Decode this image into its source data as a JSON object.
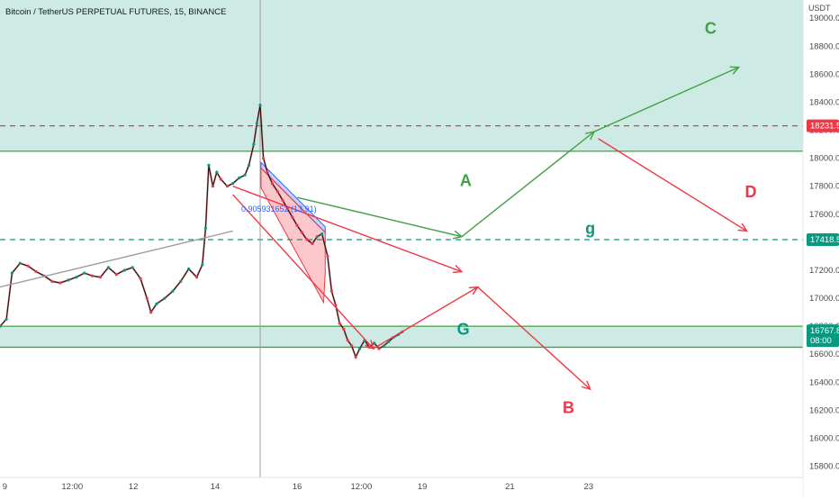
{
  "header": {
    "title": "Bitcoin / TetherUS PERPETUAL FUTURES, 15, BINANCE"
  },
  "axis": {
    "currency": "USDT",
    "ylim": [
      15720,
      19130
    ],
    "xlim": [
      0,
      100
    ],
    "yticks": [
      15800,
      16000,
      16200,
      16400,
      16600,
      16800,
      17000,
      17200,
      17400,
      17600,
      17800,
      18000,
      18200,
      18400,
      18600,
      18800,
      19000
    ],
    "xticks": [
      {
        "label": "9",
        "x": 0.6
      },
      {
        "label": "12:00",
        "x": 9.0
      },
      {
        "label": "12",
        "x": 16.6
      },
      {
        "label": "14",
        "x": 26.8
      },
      {
        "label": "16",
        "x": 37.0
      },
      {
        "label": "12:00",
        "x": 45.0
      },
      {
        "label": "19",
        "x": 52.6
      },
      {
        "label": "21",
        "x": 63.5
      },
      {
        "label": "23",
        "x": 73.3
      }
    ]
  },
  "price_labels": {
    "resistance": {
      "text": "18231.5",
      "value": 18231.5,
      "color": "#f23645"
    },
    "pivot": {
      "text": "17418.5",
      "value": 17418.5,
      "color": "#089981"
    },
    "current": {
      "price": "16767.8",
      "countdown": "08:00",
      "value": 16767.8,
      "color": "#089981"
    }
  },
  "annotations": {
    "fib_text": "0.905931652 (13.91)",
    "waves": [
      {
        "label": "C",
        "x": 88.5,
        "y": 18890,
        "color": "#43a047"
      },
      {
        "label": "A",
        "x": 58.0,
        "y": 17800,
        "color": "#43a047"
      },
      {
        "label": "D",
        "x": 93.5,
        "y": 17720,
        "color": "#f23645"
      },
      {
        "label": "g",
        "x": 73.5,
        "y": 17460,
        "color": "#089981"
      },
      {
        "label": "G",
        "x": 57.7,
        "y": 16740,
        "color": "#089981"
      },
      {
        "label": "B",
        "x": 70.8,
        "y": 16180,
        "color": "#f23645"
      }
    ]
  },
  "chart_data": {
    "type": "line",
    "title": "Bitcoin / TetherUS PERPETUAL FUTURES, 15, BINANCE",
    "xlabel": "",
    "ylabel": "USDT",
    "ylim": [
      15720,
      19130
    ],
    "grid": false,
    "price_series": [
      [
        0.0,
        16800
      ],
      [
        0.8,
        16850
      ],
      [
        1.5,
        17180
      ],
      [
        2.5,
        17250
      ],
      [
        3.5,
        17230
      ],
      [
        4.5,
        17190
      ],
      [
        5.5,
        17160
      ],
      [
        6.5,
        17120
      ],
      [
        7.5,
        17110
      ],
      [
        8.5,
        17130
      ],
      [
        9.5,
        17150
      ],
      [
        10.5,
        17180
      ],
      [
        11.5,
        17160
      ],
      [
        12.5,
        17150
      ],
      [
        13.5,
        17220
      ],
      [
        14.5,
        17170
      ],
      [
        15.5,
        17200
      ],
      [
        16.5,
        17220
      ],
      [
        17.5,
        17140
      ],
      [
        18.3,
        17000
      ],
      [
        18.8,
        16900
      ],
      [
        19.5,
        16960
      ],
      [
        20.5,
        17000
      ],
      [
        21.5,
        17050
      ],
      [
        22.5,
        17120
      ],
      [
        23.5,
        17210
      ],
      [
        24.5,
        17150
      ],
      [
        25.2,
        17240
      ],
      [
        25.6,
        17500
      ],
      [
        26.0,
        17950
      ],
      [
        26.5,
        17800
      ],
      [
        27.0,
        17900
      ],
      [
        27.5,
        17850
      ],
      [
        28.3,
        17800
      ],
      [
        29.0,
        17820
      ],
      [
        29.8,
        17860
      ],
      [
        30.5,
        17880
      ],
      [
        31.0,
        17950
      ],
      [
        31.6,
        18100
      ],
      [
        32.0,
        18250
      ],
      [
        32.4,
        18380
      ],
      [
        32.8,
        18000
      ],
      [
        33.3,
        17900
      ],
      [
        33.9,
        17820
      ],
      [
        34.6,
        17760
      ],
      [
        35.2,
        17700
      ],
      [
        35.8,
        17640
      ],
      [
        36.4,
        17580
      ],
      [
        37.0,
        17520
      ],
      [
        37.6,
        17470
      ],
      [
        38.2,
        17420
      ],
      [
        38.9,
        17390
      ],
      [
        39.5,
        17440
      ],
      [
        40.1,
        17460
      ],
      [
        40.8,
        17300
      ],
      [
        41.3,
        17050
      ],
      [
        41.8,
        16950
      ],
      [
        42.3,
        16820
      ],
      [
        42.8,
        16780
      ],
      [
        43.3,
        16700
      ],
      [
        43.8,
        16660
      ],
      [
        44.3,
        16580
      ],
      [
        44.8,
        16640
      ],
      [
        45.4,
        16700
      ],
      [
        46.0,
        16650
      ],
      [
        46.6,
        16680
      ],
      [
        47.2,
        16640
      ],
      [
        47.8,
        16660
      ],
      [
        48.4,
        16690
      ],
      [
        49.0,
        16720
      ],
      [
        49.6,
        16740
      ],
      [
        50.1,
        16760
      ]
    ],
    "horizontal_levels": [
      {
        "value": 18231.5,
        "style": "dashed",
        "color": "#f23645"
      },
      {
        "value": 18050,
        "style": "solid",
        "color": "#43a047"
      },
      {
        "value": 17418.5,
        "style": "dashed",
        "color": "#089981"
      },
      {
        "value": 16800,
        "style": "solid",
        "color": "#43a047"
      },
      {
        "value": 16650,
        "style": "solid",
        "color": "#43a047"
      }
    ],
    "zones": [
      {
        "from": 18050,
        "to": 19130,
        "color": "#cdebe4"
      },
      {
        "from": 16650,
        "to": 16800,
        "color": "#cdebe4"
      }
    ],
    "vertical_marker_x": 32.4,
    "channel_fill": [
      {
        "points": [
          [
            32.5,
            17970
          ],
          [
            40.5,
            17510
          ],
          [
            40.5,
            17470
          ],
          [
            32.5,
            17930
          ]
        ],
        "color": "#2962ff"
      },
      {
        "points": [
          [
            32.5,
            17930
          ],
          [
            40.5,
            17470
          ],
          [
            40.5,
            17180
          ],
          [
            40.3,
            16970
          ],
          [
            32.5,
            17790
          ]
        ],
        "color": "#f23645"
      }
    ],
    "arrows": [
      {
        "points": [
          [
            37.0,
            17720
          ],
          [
            57.5,
            17440
          ]
        ],
        "color": "#43a047",
        "head": true
      },
      {
        "points": [
          [
            57.5,
            17440
          ],
          [
            74.0,
            18190
          ]
        ],
        "color": "#43a047",
        "head": true
      },
      {
        "points": [
          [
            74.0,
            18190
          ],
          [
            92.0,
            18650
          ]
        ],
        "color": "#43a047",
        "head": true
      },
      {
        "points": [
          [
            74.5,
            18140
          ],
          [
            93.0,
            17480
          ]
        ],
        "color": "#f23645",
        "head": true
      },
      {
        "points": [
          [
            29.0,
            17800
          ],
          [
            57.5,
            17190
          ]
        ],
        "color": "#f23645",
        "head": true
      },
      {
        "points": [
          [
            29.0,
            17740
          ],
          [
            46.5,
            16640
          ]
        ],
        "color": "#f23645",
        "head": true
      },
      {
        "points": [
          [
            46.5,
            16640
          ],
          [
            59.5,
            17080
          ]
        ],
        "color": "#f23645",
        "head": true
      },
      {
        "points": [
          [
            59.5,
            17080
          ],
          [
            73.5,
            16350
          ]
        ],
        "color": "#f23645",
        "head": true
      },
      {
        "points": [
          [
            0.0,
            17080
          ],
          [
            29.0,
            17480
          ]
        ],
        "color": "#9e9e9e",
        "head": false
      }
    ]
  }
}
